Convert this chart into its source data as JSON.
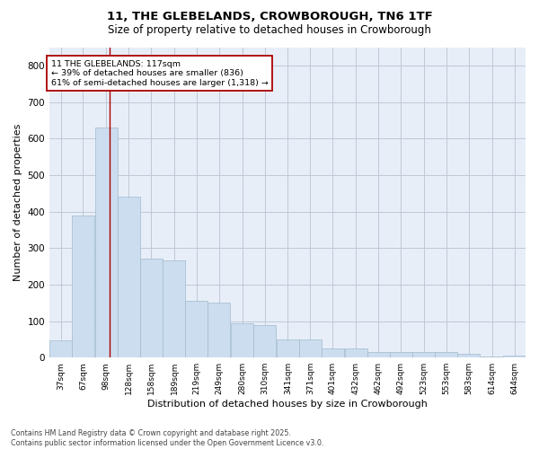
{
  "title_line1": "11, THE GLEBELANDS, CROWBOROUGH, TN6 1TF",
  "title_line2": "Size of property relative to detached houses in Crowborough",
  "xlabel": "Distribution of detached houses by size in Crowborough",
  "ylabel": "Number of detached properties",
  "bin_labels": [
    "37sqm",
    "67sqm",
    "98sqm",
    "128sqm",
    "158sqm",
    "189sqm",
    "219sqm",
    "249sqm",
    "280sqm",
    "310sqm",
    "341sqm",
    "371sqm",
    "401sqm",
    "432sqm",
    "462sqm",
    "492sqm",
    "523sqm",
    "553sqm",
    "583sqm",
    "614sqm",
    "644sqm"
  ],
  "bin_edges": [
    37,
    67,
    98,
    128,
    158,
    189,
    219,
    249,
    280,
    310,
    341,
    371,
    401,
    432,
    462,
    492,
    523,
    553,
    583,
    614,
    644
  ],
  "bar_heights": [
    47,
    390,
    630,
    440,
    270,
    265,
    155,
    150,
    95,
    90,
    50,
    50,
    25,
    25,
    15,
    15,
    15,
    15,
    10,
    2,
    5
  ],
  "bar_color": "#ccddf0",
  "bar_edge_color": "#a0bbcc",
  "grid_color": "#c0c8d8",
  "bg_color": "#e8eef8",
  "property_line_x": 117,
  "property_line_color": "#aa0000",
  "annotation_text": "11 THE GLEBELANDS: 117sqm\n← 39% of detached houses are smaller (836)\n61% of semi-detached houses are larger (1,318) →",
  "annotation_box_color": "#ffffff",
  "annotation_box_edge_color": "#aa0000",
  "ylim": [
    0,
    850
  ],
  "yticks": [
    0,
    100,
    200,
    300,
    400,
    500,
    600,
    700,
    800
  ],
  "footnote_line1": "Contains HM Land Registry data © Crown copyright and database right 2025.",
  "footnote_line2": "Contains public sector information licensed under the Open Government Licence v3.0."
}
